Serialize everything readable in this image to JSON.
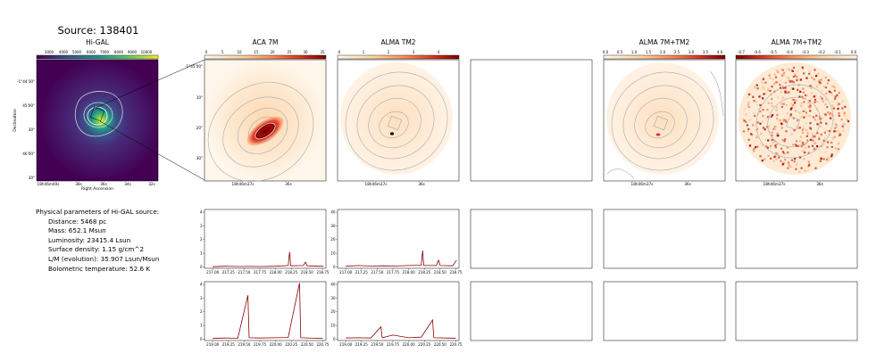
{
  "source_title": "Source: 138401",
  "panels": {
    "higal": {
      "title": "Hi-GAL",
      "colorbar_ticks": [
        "3000",
        "4000",
        "5000",
        "6000",
        "7000",
        "8000",
        "9000",
        "10000"
      ],
      "ylabel": "Declination",
      "xlabel": "Right Ascension",
      "y_ticks": [
        "-1°44'30\"",
        "45'00\"",
        "30\"",
        "46'00\"",
        "30\""
      ],
      "x_ticks": [
        "18h46m40s",
        "38s",
        "36s",
        "34s",
        "32s"
      ]
    },
    "aca": {
      "title": "ACA 7M",
      "colorbar_ticks": [
        "0",
        "5",
        "10",
        "15",
        "20",
        "25",
        "30",
        "35"
      ],
      "y_ticks": [
        "-1°45'00\"",
        "10\"",
        "20\"",
        "30\""
      ],
      "x_ticks": [
        "18h46m37s",
        "36s"
      ]
    },
    "tm2": {
      "title": "ALMA TM2",
      "colorbar_ticks": [
        "0",
        "1",
        "2",
        "3",
        "4"
      ],
      "x_ticks": [
        "18h46m37s",
        "36s"
      ]
    },
    "comb": {
      "title": "ALMA 7M+TM2",
      "colorbar_ticks": [
        "0.0",
        "0.5",
        "1.0",
        "1.5",
        "2.0",
        "2.5",
        "3.0",
        "3.5",
        "4.0"
      ],
      "x_ticks": [
        "18h46m37s",
        "36s"
      ]
    },
    "comb2": {
      "title": "ALMA 7M+TM2",
      "colorbar_ticks": [
        "-0.7",
        "-0.6",
        "-0.5",
        "-0.4",
        "-0.3",
        "-0.2",
        "-0.1",
        "0.0"
      ],
      "x_ticks": [
        "18h46m37s",
        "36s"
      ]
    }
  },
  "parameters": {
    "heading": "Physical parameters of Hi-GAL source:",
    "distance": "Distance: 5468 pc",
    "mass": "Mass: 652.1 Msun",
    "luminosity": "Luminosity: 23415.4 Lsun",
    "surface_density": "Surface density: 1.15 g/cm^2",
    "lm": "L/M (evolution): 35.907 Lsun/Msun",
    "temperature": "Bolometric temperature: 52.6 K"
  },
  "colors": {
    "spectrum_line": "#8b0000",
    "viridis_dark": "#440154",
    "contour": "#c8c8c8"
  },
  "chart_data": [
    {
      "type": "line",
      "panel": "ACA 7M spectrum, window 1",
      "x_ticks": [
        "217.00",
        "217.25",
        "217.50",
        "217.75",
        "218.00",
        "218.25",
        "218.50",
        "218.75"
      ],
      "y_ticks": [
        "0",
        "1",
        "2",
        "3",
        "4"
      ],
      "xlim": [
        216.87,
        218.8
      ],
      "ylim": [
        -0.1,
        4.2
      ],
      "x": [
        217.0,
        217.2,
        217.4,
        217.6,
        217.8,
        218.0,
        218.2,
        218.222,
        218.24,
        218.44,
        218.475,
        218.5,
        218.7,
        218.76
      ],
      "values": [
        0.02,
        0.05,
        0.03,
        0.04,
        0.03,
        0.05,
        0.1,
        1.1,
        0.08,
        0.1,
        0.35,
        0.08,
        0.05,
        0.05
      ]
    },
    {
      "type": "line",
      "panel": "ALMA TM2 spectrum, window 1",
      "x_ticks": [
        "217.00",
        "217.25",
        "217.50",
        "217.75",
        "218.00",
        "218.25",
        "218.50",
        "218.75"
      ],
      "y_ticks": [
        "0",
        "10",
        "20",
        "30",
        "40"
      ],
      "xlim": [
        216.87,
        218.8
      ],
      "ylim": [
        -1,
        42
      ],
      "x": [
        217.0,
        217.2,
        217.4,
        217.6,
        217.8,
        218.0,
        218.2,
        218.222,
        218.24,
        218.44,
        218.475,
        218.5,
        218.7,
        218.76
      ],
      "values": [
        0.5,
        1.0,
        0.6,
        0.8,
        0.7,
        1.0,
        1.2,
        12.0,
        1.0,
        1.0,
        5.0,
        1.0,
        0.8,
        5.0
      ]
    },
    {
      "type": "line",
      "panel": "ACA 7M spectrum, window 2",
      "x_ticks": [
        "219.00",
        "219.25",
        "219.50",
        "219.75",
        "220.00",
        "220.25",
        "220.50",
        "220.75"
      ],
      "y_ticks": [
        "0",
        "1",
        "2",
        "3",
        "4"
      ],
      "xlim": [
        218.87,
        220.8
      ],
      "ylim": [
        -0.1,
        4.2
      ],
      "x": [
        219.0,
        219.2,
        219.4,
        219.56,
        219.58,
        219.75,
        220.0,
        220.2,
        220.38,
        220.4,
        220.6,
        220.75
      ],
      "values": [
        0.05,
        0.08,
        0.06,
        3.2,
        0.1,
        0.08,
        0.1,
        0.12,
        4.1,
        0.1,
        0.07,
        0.05
      ]
    },
    {
      "type": "line",
      "panel": "ALMA TM2 spectrum, window 2",
      "x_ticks": [
        "219.00",
        "219.25",
        "219.50",
        "219.75",
        "220.00",
        "220.25",
        "220.50",
        "220.75"
      ],
      "y_ticks": [
        "0",
        "10",
        "20",
        "30",
        "40"
      ],
      "xlim": [
        218.87,
        220.8
      ],
      "ylim": [
        -1,
        42
      ],
      "x": [
        219.0,
        219.2,
        219.4,
        219.56,
        219.58,
        219.75,
        220.0,
        220.2,
        220.38,
        220.4,
        220.6,
        220.75
      ],
      "values": [
        0.8,
        1.0,
        0.8,
        9.0,
        1.0,
        3.0,
        1.0,
        1.5,
        14.0,
        1.0,
        0.8,
        0.6
      ]
    }
  ]
}
